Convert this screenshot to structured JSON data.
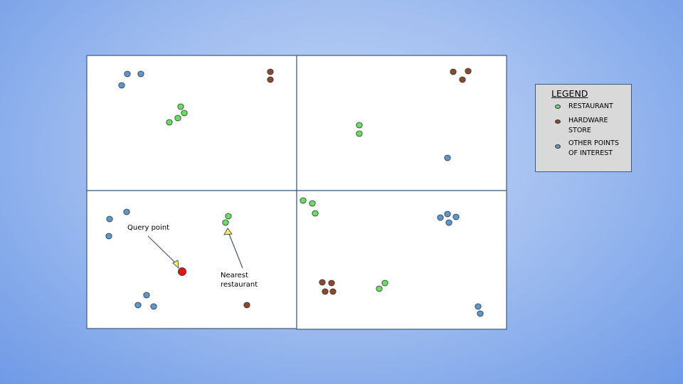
{
  "legend": {
    "title": "LEGEND",
    "items": [
      {
        "label": "RESTAURANT",
        "color": "#66e060"
      },
      {
        "label": "HARDWARE\nSTORE",
        "color": "#8b4a2b"
      },
      {
        "label": "OTHER POINTS\nOF INTEREST",
        "color": "#5b97d1"
      }
    ]
  },
  "annotations": {
    "query_point": "Query point",
    "nearest_restaurant": "Nearest\nrestaurant"
  },
  "colors": {
    "restaurant": "#66e060",
    "hardware": "#8b4a2b",
    "other": "#5b97d1",
    "query": "#ee1111",
    "quadrant_border": "#3d5a80"
  }
}
